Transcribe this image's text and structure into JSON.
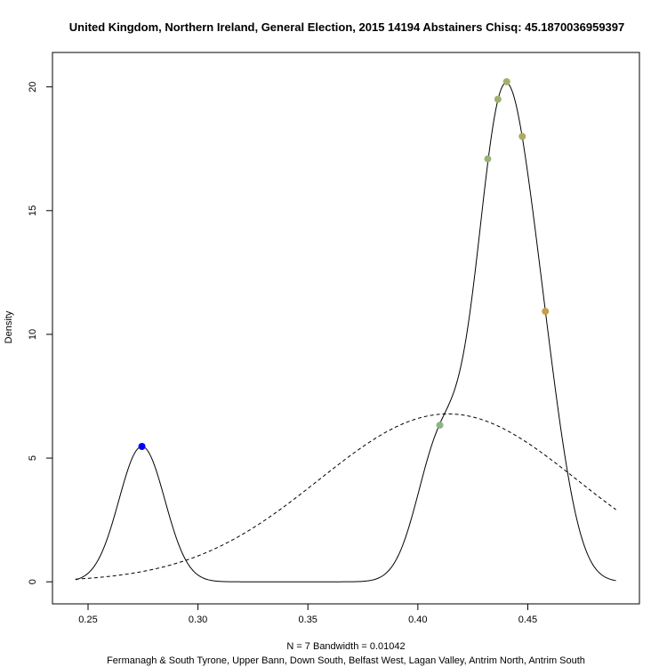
{
  "chart_data": {
    "type": "line",
    "title": "United Kingdom, Northern Ireland, General Election, 2015 14194 Abstainers Chisq: 45.1870036959397",
    "xlabel_line1": "N = 7   Bandwidth = 0.01042",
    "xlabel_line2": "Fermanagh & South Tyrone, Upper Bann, Down South, Belfast West, Lagan Valley, Antrim North, Antrim South",
    "ylabel": "Density",
    "xlim": [
      0.2445,
      0.4901
    ],
    "ylim": [
      0,
      20.5
    ],
    "x_ticks": [
      0.25,
      0.3,
      0.35,
      0.4,
      0.45
    ],
    "x_tick_labels": [
      "0.25",
      "0.30",
      "0.35",
      "0.40",
      "0.45"
    ],
    "y_ticks": [
      0,
      5,
      10,
      15,
      20
    ],
    "y_tick_labels": [
      "0",
      "5",
      "10",
      "15",
      "20"
    ],
    "bandwidth": 0.01042,
    "n": 7,
    "series": [
      {
        "style": "solid",
        "kind": "kernel-density",
        "x_range": [
          0.2443,
          0.4901
        ]
      },
      {
        "style": "dashed",
        "kind": "normal",
        "mean": 0.4137,
        "sd": 0.0588,
        "x_range": [
          0.2443,
          0.4901
        ]
      }
    ],
    "points": [
      {
        "x": 0.2745,
        "y": 5.47,
        "color": "#0000ff"
      },
      {
        "x": 0.41,
        "y": 6.33,
        "color": "#8db583"
      },
      {
        "x": 0.4318,
        "y": 17.09,
        "color": "#9ab27a"
      },
      {
        "x": 0.4364,
        "y": 19.5,
        "color": "#9fb071"
      },
      {
        "x": 0.4404,
        "y": 20.21,
        "color": "#a5ae6a"
      },
      {
        "x": 0.4475,
        "y": 18.0,
        "color": "#adab62"
      },
      {
        "x": 0.458,
        "y": 10.93,
        "color": "#c29f4a"
      }
    ]
  }
}
